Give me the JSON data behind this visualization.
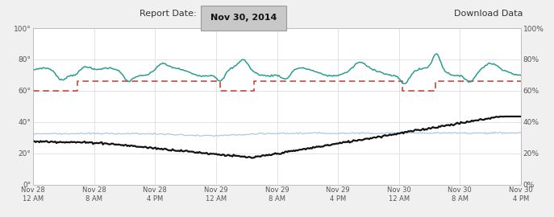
{
  "title_label": "Report Date:",
  "title_date": "Nov 30, 2014",
  "download_label": "Download Data",
  "x_tick_labels": [
    "Nov 28\n12 AM",
    "Nov 28\n8 AM",
    "Nov 28\n4 PM",
    "Nov 29\n12 AM",
    "Nov 29\n8 AM",
    "Nov 29\n4 PM",
    "Nov 30\n12 AM",
    "Nov 30\n8 AM",
    "Nov 30\n4 PM"
  ],
  "ylim_left": [
    0,
    100
  ],
  "ylim_right": [
    0,
    100
  ],
  "yticks_left": [
    0,
    20,
    40,
    60,
    80,
    100
  ],
  "yticks_right": [
    0,
    20,
    40,
    60,
    80,
    100
  ],
  "ytick_labels_left": [
    "0°",
    "20°",
    "40°",
    "60°",
    "80°",
    "100°"
  ],
  "ytick_labels_right": [
    "0%",
    "20%",
    "40%",
    "60%",
    "80%",
    "100%"
  ],
  "bg_color": "#f0f0f0",
  "plot_bg_color": "#ffffff",
  "grid_color": "#d8d8d8",
  "teal_color": "#2a9d8f",
  "red_dashed_color": "#c0392b",
  "black_color": "#111111",
  "light_blue_color": "#b0c8dc",
  "num_points": 400
}
